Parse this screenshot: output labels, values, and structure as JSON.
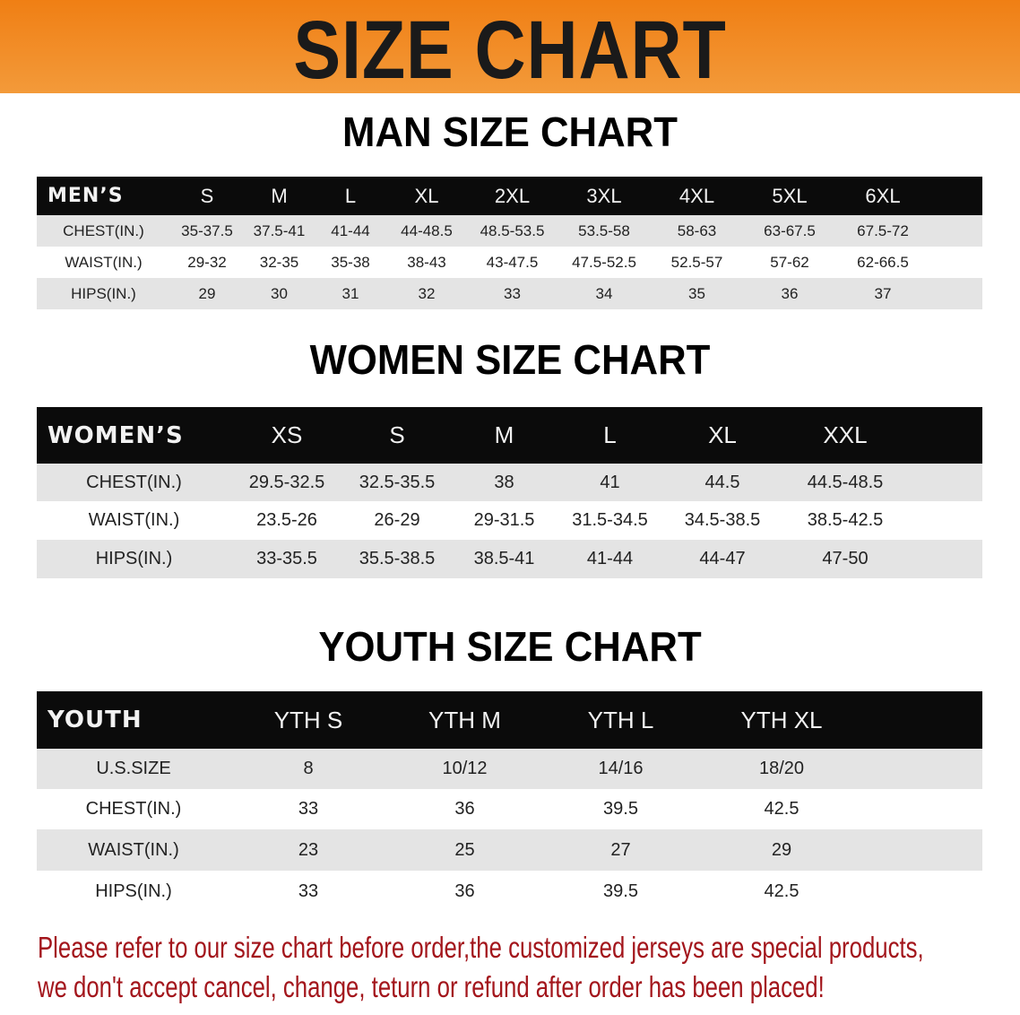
{
  "banner_title": "SIZE CHART",
  "men": {
    "title": "MAN SIZE CHART",
    "header": [
      "MEN’S",
      "S",
      "M",
      "L",
      "XL",
      "2XL",
      "3XL",
      "4XL",
      "5XL",
      "6XL"
    ],
    "rows": [
      [
        "CHEST(IN.)",
        "35-37.5",
        "37.5-41",
        "41-44",
        "44-48.5",
        "48.5-53.5",
        "53.5-58",
        "58-63",
        "63-67.5",
        "67.5-72"
      ],
      [
        "WAIST(IN.)",
        "29-32",
        "32-35",
        "35-38",
        "38-43",
        "43-47.5",
        "47.5-52.5",
        "52.5-57",
        "57-62",
        "62-66.5"
      ],
      [
        "HIPS(IN.)",
        "29",
        "30",
        "31",
        "32",
        "33",
        "34",
        "35",
        "36",
        "37"
      ]
    ]
  },
  "women": {
    "title": "WOMEN SIZE CHART",
    "header": [
      "WOMEN’S",
      "XS",
      "S",
      "M",
      "L",
      "XL",
      "XXL"
    ],
    "rows": [
      [
        "CHEST(IN.)",
        "29.5-32.5",
        "32.5-35.5",
        "38",
        "41",
        "44.5",
        "44.5-48.5"
      ],
      [
        "WAIST(IN.)",
        "23.5-26",
        "26-29",
        "29-31.5",
        "31.5-34.5",
        "34.5-38.5",
        "38.5-42.5"
      ],
      [
        "HIPS(IN.)",
        "33-35.5",
        "35.5-38.5",
        "38.5-41",
        "41-44",
        "44-47",
        "47-50"
      ]
    ]
  },
  "youth": {
    "title": "YOUTH SIZE CHART",
    "header": [
      "YOUTH",
      "YTH S",
      "YTH M",
      "YTH L",
      "YTH XL"
    ],
    "rows": [
      [
        "U.S.SIZE",
        "8",
        "10/12",
        "14/16",
        "18/20"
      ],
      [
        "CHEST(IN.)",
        "33",
        "36",
        "39.5",
        "42.5"
      ],
      [
        "WAIST(IN.)",
        "23",
        "25",
        "27",
        "29"
      ],
      [
        "HIPS(IN.)",
        "33",
        "36",
        "39.5",
        "42.5"
      ]
    ]
  },
  "note": {
    "line1": "Please refer to our size chart before order,the customized jerseys are special products,",
    "line2": "we don't accept cancel, change, teturn or refund after order has been placed!"
  },
  "colors": {
    "banner": "#f07f14",
    "header_bg": "#0b0b0b",
    "row_gray": "#e4e4e4",
    "note": "#a3161c"
  }
}
